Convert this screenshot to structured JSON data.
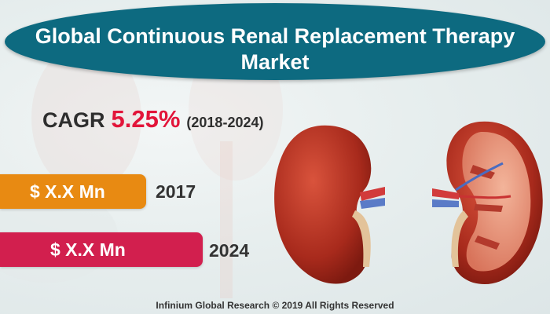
{
  "title": {
    "line1": "Global Continuous Renal Replacement Therapy",
    "line2": "Market"
  },
  "cagr": {
    "label": "CAGR",
    "value": "5.25%",
    "range": "(2018-2024)"
  },
  "bars": [
    {
      "label": "$ X.X Mn",
      "year": "2017",
      "color": "#e88a12"
    },
    {
      "label": "$ X.X Mn",
      "year": "2024",
      "color": "#d21f4e"
    }
  ],
  "banner_color": "#0d6a80",
  "footer": "Infinium Global Research © 2019 All Rights Reserved",
  "illustration": "kidney-illustration"
}
